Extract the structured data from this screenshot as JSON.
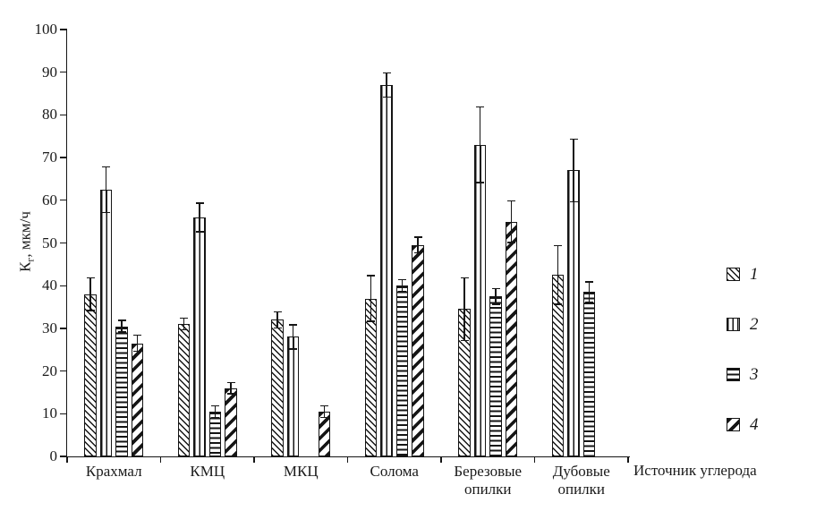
{
  "chart_data": {
    "type": "bar",
    "title": "",
    "xlabel": "Источник углерода",
    "ylabel": "Кг, мкм/ч",
    "ylabel_parts": {
      "main": "К",
      "sub": "г",
      "rest": ", мкм/ч"
    },
    "ylim": [
      0,
      100
    ],
    "yticks": [
      0,
      10,
      20,
      30,
      40,
      50,
      60,
      70,
      80,
      90,
      100
    ],
    "grid": false,
    "legend_position": "right",
    "error_bars": true,
    "categories": [
      "Крахмал",
      "КМЦ",
      "МКЦ",
      "Солома",
      "Березовые опилки",
      "Дубовые опилки"
    ],
    "series": [
      {
        "name": "1",
        "pattern": "diag-back",
        "pattern_desc": "diagonal-backslash-hatch",
        "values": [
          38,
          31,
          32,
          37,
          34.5,
          42.5
        ],
        "errors": [
          4,
          1.5,
          2,
          5.5,
          7.5,
          7
        ]
      },
      {
        "name": "2",
        "pattern": "vert",
        "pattern_desc": "vertical-line-hatch",
        "values": [
          62.5,
          56,
          28,
          87,
          73,
          67
        ],
        "errors": [
          5.5,
          3.5,
          3,
          3,
          9,
          7.5
        ]
      },
      {
        "name": "3",
        "pattern": "horiz",
        "pattern_desc": "horizontal-line-hatch",
        "values": [
          30.5,
          10.5,
          null,
          40,
          37.5,
          38.5
        ],
        "errors": [
          1.5,
          1.5,
          null,
          1.5,
          2,
          2.5
        ]
      },
      {
        "name": "4",
        "pattern": "diag-fwd",
        "pattern_desc": "diagonal-slash-bold-hatch",
        "values": [
          26.5,
          16,
          10.5,
          49.5,
          55,
          null
        ],
        "errors": [
          2,
          1.5,
          1.5,
          2,
          5,
          null
        ]
      }
    ]
  },
  "colors": {
    "ink": "#1a1a1a",
    "background": "#ffffff"
  }
}
